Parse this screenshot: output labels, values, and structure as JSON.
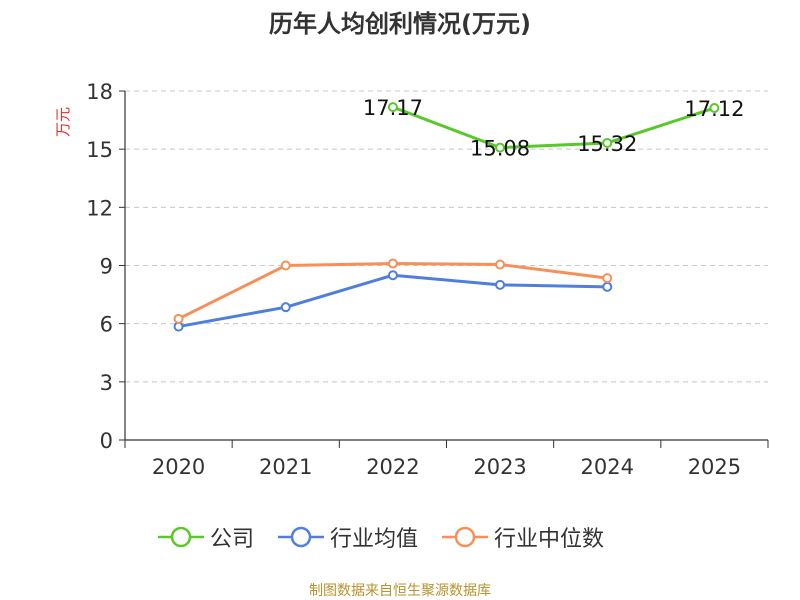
{
  "title": "历年人均创利情况(万元)",
  "source_note": "制图数据来自恒生聚源数据库",
  "colors": {
    "company": "#5ac72a",
    "industry_avg": "#4f7fdc",
    "industry_median": "#f5905a",
    "ylabel": "#e03030",
    "source": "#b8922e"
  },
  "chart_data": {
    "type": "line",
    "title": "历年人均创利情况(万元)",
    "ylabel": "万元",
    "xlabel": "",
    "ylim": [
      0,
      18
    ],
    "yticks": [
      0,
      3,
      6,
      9,
      12,
      15,
      18
    ],
    "categories": [
      "2020",
      "2021",
      "2022",
      "2023",
      "2024",
      "2025"
    ],
    "grid": true,
    "legend_position": "bottom",
    "series": [
      {
        "name": "公司",
        "key": "company",
        "values": [
          null,
          null,
          17.17,
          15.08,
          15.32,
          17.12
        ],
        "labels": [
          null,
          null,
          "17.17",
          "15.08",
          "15.32",
          "17.12"
        ]
      },
      {
        "name": "行业均值",
        "key": "industry_avg",
        "values": [
          5.85,
          6.85,
          8.5,
          8.0,
          7.9,
          null
        ],
        "labels": [
          null,
          null,
          null,
          null,
          null,
          null
        ]
      },
      {
        "name": "行业中位数",
        "key": "industry_median",
        "values": [
          6.25,
          9.0,
          9.1,
          9.05,
          8.35,
          null
        ],
        "labels": [
          null,
          null,
          null,
          null,
          null,
          null
        ]
      }
    ]
  }
}
